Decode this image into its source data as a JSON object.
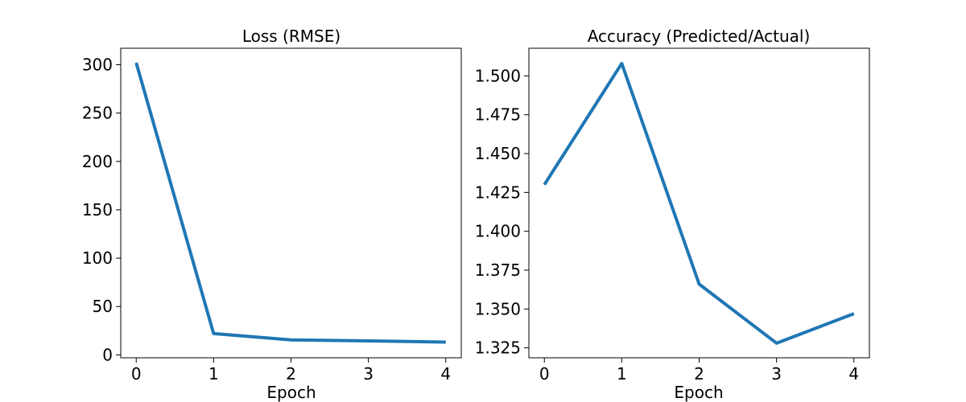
{
  "chart_data": [
    {
      "type": "line",
      "title": "Loss (RMSE)",
      "xlabel": "Epoch",
      "ylabel": "",
      "x": [
        0,
        1,
        2,
        3,
        4
      ],
      "x_ticks": [
        "0",
        "1",
        "2",
        "3",
        "4"
      ],
      "xlim": [
        -0.2,
        4.2
      ],
      "y_ticks": [
        "0",
        "50",
        "100",
        "150",
        "200",
        "250",
        "300"
      ],
      "ylim": [
        -3,
        317
      ],
      "grid": false,
      "line_color": "#1f77b4",
      "series": [
        {
          "values": [
            302,
            22,
            15.5,
            14.5,
            13.2
          ]
        }
      ]
    },
    {
      "type": "line",
      "title": "Accuracy (Predicted/Actual)",
      "xlabel": "Epoch",
      "ylabel": "",
      "x": [
        0,
        1,
        2,
        3,
        4
      ],
      "x_ticks": [
        "0",
        "1",
        "2",
        "3",
        "4"
      ],
      "xlim": [
        -0.2,
        4.2
      ],
      "y_ticks": [
        "1.325",
        "1.350",
        "1.375",
        "1.400",
        "1.425",
        "1.450",
        "1.475",
        "1.500"
      ],
      "ylim": [
        1.3186,
        1.5178
      ],
      "grid": false,
      "line_color": "#1f77b4",
      "series": [
        {
          "values": [
            1.43,
            1.508,
            1.366,
            1.328,
            1.347
          ]
        }
      ]
    }
  ]
}
